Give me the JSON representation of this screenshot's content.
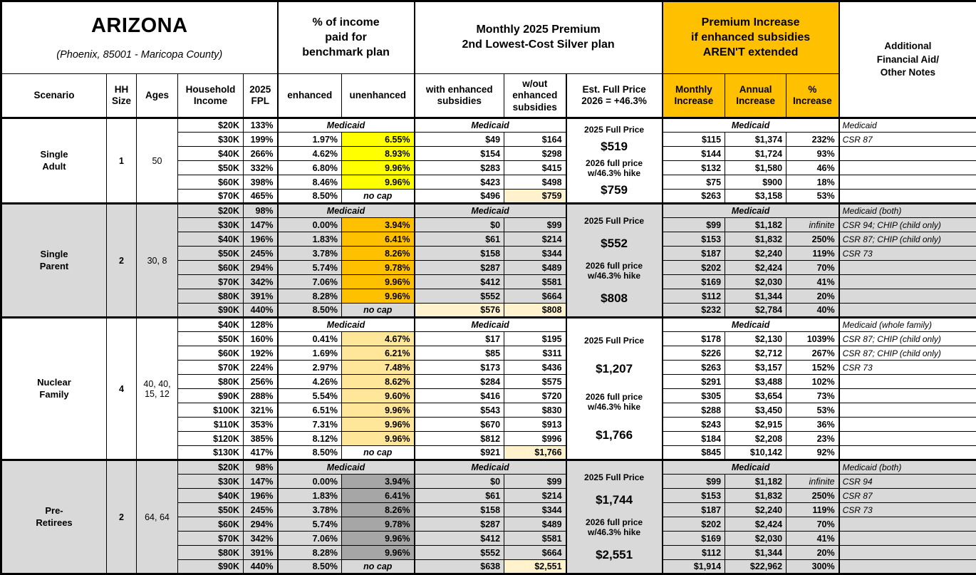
{
  "labels": {
    "medicaid": "Medicaid",
    "no_cap": "no cap"
  },
  "colors": {
    "band_orange": "#FFC000",
    "yellow": "#FFFF00",
    "orange": "#FFC000",
    "tan": "#FFE699",
    "gray_highlight": "#A6A6A6",
    "cream": "#FFF2CC",
    "section_gray": "#D9D9D9"
  },
  "header": {
    "title": "ARIZONA",
    "subtitle": "(Phoenix, 85001 - Maricopa County)",
    "pct_income_band": "% of income\npaid for\nbenchmark plan",
    "premium_band": "Monthly 2025 Premium\n2nd Lowest-Cost Silver plan",
    "increase_band": "Premium Increase\nif enhanced subsidies\nAREN'T extended",
    "notes_band": "Additional\nFinancial Aid/\nOther Notes",
    "scenario": "Scenario",
    "hh_size": "HH\nSize",
    "ages": "Ages",
    "household_income": "Household\nIncome",
    "fpl": "2025\nFPL",
    "enhanced": "enhanced",
    "unenhanced": "unenhanced",
    "with_subsidies": "with enhanced\nsubsidies",
    "without_subsidies": "w/out\nenhanced\nsubsidies",
    "est_full_price": "Est. Full Price\n2026 = +46.3%",
    "monthly_increase": "Monthly\nIncrease",
    "annual_increase": "Annual\nIncrease",
    "pct_increase": "%\nIncrease"
  },
  "sections": [
    {
      "scenario": "Single\nAdult",
      "hh_size": "1",
      "ages": "50",
      "highlight_color": "#FFFF00",
      "full_price": {
        "label_2025": "2025 Full Price",
        "price_2025": "$519",
        "label_2026": "2026 full price\nw/46.3% hike",
        "price_2026": "$759"
      },
      "rows": [
        {
          "income": "$20K",
          "fpl": "133%",
          "medicaid": true,
          "note": "Medicaid"
        },
        {
          "income": "$30K",
          "fpl": "199%",
          "enhanced": "1.97%",
          "unenhanced": "6.55%",
          "with_sub": "$49",
          "without_sub": "$164",
          "monthly": "$115",
          "annual": "$1,374",
          "pct": "232%",
          "note": "CSR 87"
        },
        {
          "income": "$40K",
          "fpl": "266%",
          "enhanced": "4.62%",
          "unenhanced": "8.93%",
          "with_sub": "$154",
          "without_sub": "$298",
          "monthly": "$144",
          "annual": "$1,724",
          "pct": "93%",
          "note": ""
        },
        {
          "income": "$50K",
          "fpl": "332%",
          "enhanced": "6.80%",
          "unenhanced": "9.96%",
          "with_sub": "$283",
          "without_sub": "$415",
          "monthly": "$132",
          "annual": "$1,580",
          "pct": "46%",
          "note": ""
        },
        {
          "income": "$60K",
          "fpl": "398%",
          "enhanced": "8.46%",
          "unenhanced": "9.96%",
          "with_sub": "$423",
          "without_sub": "$498",
          "monthly": "$75",
          "annual": "$900",
          "pct": "18%",
          "note": ""
        },
        {
          "income": "$70K",
          "fpl": "465%",
          "enhanced": "8.50%",
          "no_cap": true,
          "with_sub": "$496",
          "without_sub": "$759",
          "without_sub_hl": true,
          "monthly": "$263",
          "annual": "$3,158",
          "pct": "53%",
          "note": ""
        }
      ]
    },
    {
      "scenario": "Single\nParent",
      "hh_size": "2",
      "ages": "30, 8",
      "highlight_color": "#FFC000",
      "full_price": {
        "label_2025": "2025 Full Price",
        "price_2025": "$552",
        "label_2026": "2026 full price\nw/46.3% hike",
        "price_2026": "$808"
      },
      "rows": [
        {
          "income": "$20K",
          "fpl": "98%",
          "medicaid": true,
          "note": "Medicaid (both)"
        },
        {
          "income": "$30K",
          "fpl": "147%",
          "enhanced": "0.00%",
          "unenhanced": "3.94%",
          "with_sub": "$0",
          "without_sub": "$99",
          "monthly": "$99",
          "annual": "$1,182",
          "pct": "infinite",
          "pct_infinite": true,
          "note": "CSR 94; CHIP (child only)"
        },
        {
          "income": "$40K",
          "fpl": "196%",
          "enhanced": "1.83%",
          "unenhanced": "6.41%",
          "with_sub": "$61",
          "without_sub": "$214",
          "monthly": "$153",
          "annual": "$1,832",
          "pct": "250%",
          "note": "CSR 87; CHIP (child only)"
        },
        {
          "income": "$50K",
          "fpl": "245%",
          "enhanced": "3.78%",
          "unenhanced": "8.26%",
          "with_sub": "$158",
          "without_sub": "$344",
          "monthly": "$187",
          "annual": "$2,240",
          "pct": "119%",
          "note": "CSR 73"
        },
        {
          "income": "$60K",
          "fpl": "294%",
          "enhanced": "5.74%",
          "unenhanced": "9.78%",
          "with_sub": "$287",
          "without_sub": "$489",
          "monthly": "$202",
          "annual": "$2,424",
          "pct": "70%",
          "note": ""
        },
        {
          "income": "$70K",
          "fpl": "342%",
          "enhanced": "7.06%",
          "unenhanced": "9.96%",
          "with_sub": "$412",
          "without_sub": "$581",
          "monthly": "$169",
          "annual": "$2,030",
          "pct": "41%",
          "note": ""
        },
        {
          "income": "$80K",
          "fpl": "391%",
          "enhanced": "8.28%",
          "unenhanced": "9.96%",
          "with_sub": "$552",
          "without_sub": "$664",
          "monthly": "$112",
          "annual": "$1,344",
          "pct": "20%",
          "note": ""
        },
        {
          "income": "$90K",
          "fpl": "440%",
          "enhanced": "8.50%",
          "no_cap": true,
          "with_sub": "$576",
          "with_sub_hl": true,
          "without_sub": "$808",
          "without_sub_hl": true,
          "monthly": "$232",
          "annual": "$2,784",
          "pct": "40%",
          "note": ""
        }
      ]
    },
    {
      "scenario": "Nuclear\nFamily",
      "hh_size": "4",
      "ages": "40, 40,\n15, 12",
      "highlight_color": "#FFE699",
      "full_price": {
        "label_2025": "2025 Full Price",
        "price_2025": "$1,207",
        "label_2026": "2026 full price\nw/46.3% hike",
        "price_2026": "$1,766"
      },
      "rows": [
        {
          "income": "$40K",
          "fpl": "128%",
          "medicaid": true,
          "note": "Medicaid (whole family)"
        },
        {
          "income": "$50K",
          "fpl": "160%",
          "enhanced": "0.41%",
          "unenhanced": "4.67%",
          "with_sub": "$17",
          "without_sub": "$195",
          "monthly": "$178",
          "annual": "$2,130",
          "pct": "1039%",
          "note": "CSR 87; CHIP (child only)"
        },
        {
          "income": "$60K",
          "fpl": "192%",
          "enhanced": "1.69%",
          "unenhanced": "6.21%",
          "with_sub": "$85",
          "without_sub": "$311",
          "monthly": "$226",
          "annual": "$2,712",
          "pct": "267%",
          "note": "CSR 87; CHIP (child only)"
        },
        {
          "income": "$70K",
          "fpl": "224%",
          "enhanced": "2.97%",
          "unenhanced": "7.48%",
          "with_sub": "$173",
          "without_sub": "$436",
          "monthly": "$263",
          "annual": "$3,157",
          "pct": "152%",
          "note": "CSR 73"
        },
        {
          "income": "$80K",
          "fpl": "256%",
          "enhanced": "4.26%",
          "unenhanced": "8.62%",
          "with_sub": "$284",
          "without_sub": "$575",
          "monthly": "$291",
          "annual": "$3,488",
          "pct": "102%",
          "note": ""
        },
        {
          "income": "$90K",
          "fpl": "288%",
          "enhanced": "5.54%",
          "unenhanced": "9.60%",
          "with_sub": "$416",
          "without_sub": "$720",
          "monthly": "$305",
          "annual": "$3,654",
          "pct": "73%",
          "note": ""
        },
        {
          "income": "$100K",
          "fpl": "321%",
          "enhanced": "6.51%",
          "unenhanced": "9.96%",
          "with_sub": "$543",
          "without_sub": "$830",
          "monthly": "$288",
          "annual": "$3,450",
          "pct": "53%",
          "note": ""
        },
        {
          "income": "$110K",
          "fpl": "353%",
          "enhanced": "7.31%",
          "unenhanced": "9.96%",
          "with_sub": "$670",
          "without_sub": "$913",
          "monthly": "$243",
          "annual": "$2,915",
          "pct": "36%",
          "note": ""
        },
        {
          "income": "$120K",
          "fpl": "385%",
          "enhanced": "8.12%",
          "unenhanced": "9.96%",
          "with_sub": "$812",
          "without_sub": "$996",
          "monthly": "$184",
          "annual": "$2,208",
          "pct": "23%",
          "note": ""
        },
        {
          "income": "$130K",
          "fpl": "417%",
          "enhanced": "8.50%",
          "no_cap": true,
          "with_sub": "$921",
          "without_sub": "$1,766",
          "without_sub_hl": true,
          "monthly": "$845",
          "annual": "$10,142",
          "pct": "92%",
          "note": ""
        }
      ]
    },
    {
      "scenario": "Pre-\nRetirees",
      "hh_size": "2",
      "ages": "64, 64",
      "highlight_color": "#A6A6A6",
      "full_price": {
        "label_2025": "2025 Full Price",
        "price_2025": "$1,744",
        "label_2026": "2026 full price\nw/46.3% hike",
        "price_2026": "$2,551"
      },
      "rows": [
        {
          "income": "$20K",
          "fpl": "98%",
          "medicaid": true,
          "note": "Medicaid (both)"
        },
        {
          "income": "$30K",
          "fpl": "147%",
          "enhanced": "0.00%",
          "unenhanced": "3.94%",
          "with_sub": "$0",
          "without_sub": "$99",
          "monthly": "$99",
          "annual": "$1,182",
          "pct": "infinite",
          "pct_infinite": true,
          "note": "CSR 94"
        },
        {
          "income": "$40K",
          "fpl": "196%",
          "enhanced": "1.83%",
          "unenhanced": "6.41%",
          "with_sub": "$61",
          "without_sub": "$214",
          "monthly": "$153",
          "annual": "$1,832",
          "pct": "250%",
          "note": "CSR 87"
        },
        {
          "income": "$50K",
          "fpl": "245%",
          "enhanced": "3.78%",
          "unenhanced": "8.26%",
          "with_sub": "$158",
          "without_sub": "$344",
          "monthly": "$187",
          "annual": "$2,240",
          "pct": "119%",
          "note": "CSR 73"
        },
        {
          "income": "$60K",
          "fpl": "294%",
          "enhanced": "5.74%",
          "unenhanced": "9.78%",
          "with_sub": "$287",
          "without_sub": "$489",
          "monthly": "$202",
          "annual": "$2,424",
          "pct": "70%",
          "note": ""
        },
        {
          "income": "$70K",
          "fpl": "342%",
          "enhanced": "7.06%",
          "unenhanced": "9.96%",
          "with_sub": "$412",
          "without_sub": "$581",
          "monthly": "$169",
          "annual": "$2,030",
          "pct": "41%",
          "note": ""
        },
        {
          "income": "$80K",
          "fpl": "391%",
          "enhanced": "8.28%",
          "unenhanced": "9.96%",
          "with_sub": "$552",
          "without_sub": "$664",
          "monthly": "$112",
          "annual": "$1,344",
          "pct": "20%",
          "note": ""
        },
        {
          "income": "$90K",
          "fpl": "440%",
          "enhanced": "8.50%",
          "no_cap": true,
          "with_sub": "$638",
          "without_sub": "$2,551",
          "without_sub_hl": true,
          "monthly": "$1,914",
          "annual": "$22,962",
          "pct": "300%",
          "note": ""
        }
      ]
    }
  ]
}
